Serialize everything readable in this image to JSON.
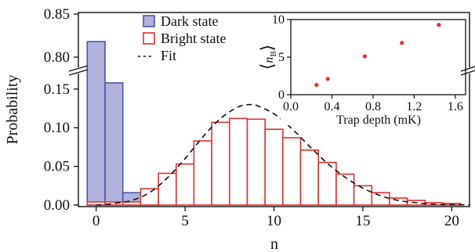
{
  "chart_data": [
    {
      "type": "bar",
      "xlabel": "n",
      "ylabel": "Probability",
      "x_ticks": [
        0,
        5,
        10,
        15,
        20
      ],
      "x_tick_labels": [
        "0",
        "5",
        "10",
        "15",
        "20"
      ],
      "xlim": [
        -1,
        21
      ],
      "y_lower_ticks": [
        0.0,
        0.05,
        0.1,
        0.15
      ],
      "y_lower_tick_labels": [
        "0.00",
        "0.05",
        "0.10",
        "0.15"
      ],
      "y_lower_range": [
        0.0,
        0.17
      ],
      "y_upper_ticks": [
        0.8,
        0.85
      ],
      "y_upper_tick_labels": [
        "0.80",
        "0.85"
      ],
      "y_upper_range": [
        0.79,
        0.85
      ],
      "broken_y_axis": true,
      "legend_position": "top-center",
      "categories": [
        0,
        1,
        2,
        3,
        4,
        5,
        6,
        7,
        8,
        9,
        10,
        11,
        12,
        13,
        14,
        15,
        16,
        17,
        18,
        19,
        20
      ],
      "series": [
        {
          "name": "Dark state",
          "kind": "bar",
          "color": "#4a55a8",
          "fill": "#b1b3dc",
          "values": [
            0.818,
            0.158,
            0.016,
            0.003,
            0,
            0,
            0,
            0,
            0,
            0,
            0,
            0,
            0,
            0,
            0,
            0,
            0,
            0,
            0,
            0,
            0
          ]
        },
        {
          "name": "Bright state",
          "kind": "bar",
          "color": "#e03030",
          "fill": "#ffffff",
          "values": [
            0.004,
            0.004,
            0.004,
            0.021,
            0.041,
            0.053,
            0.083,
            0.107,
            0.112,
            0.111,
            0.098,
            0.087,
            0.071,
            0.055,
            0.04,
            0.025,
            0.016,
            0.009,
            0.006,
            0.003,
            0.002
          ]
        },
        {
          "name": "Fit",
          "kind": "line",
          "style": "dashed",
          "color": "#111111",
          "x": [
            0,
            1,
            2,
            3,
            4,
            5,
            6,
            7,
            8,
            8.7,
            9,
            10,
            11,
            12,
            13,
            14,
            15,
            16,
            17,
            18,
            19,
            20,
            21
          ],
          "values": [
            0.0,
            0.002,
            0.006,
            0.016,
            0.035,
            0.06,
            0.088,
            0.112,
            0.127,
            0.13,
            0.129,
            0.118,
            0.099,
            0.076,
            0.054,
            0.036,
            0.022,
            0.012,
            0.006,
            0.003,
            0.001,
            0.0005,
            0.0002
          ]
        }
      ]
    },
    {
      "type": "scatter",
      "position": "inset-top-right",
      "xlabel": "Trap depth (mK)",
      "ylabel_main": "n",
      "ylabel_sub": "B",
      "xlim": [
        0.0,
        1.7
      ],
      "ylim": [
        0,
        10
      ],
      "x_ticks": [
        0.0,
        0.4,
        0.8,
        1.2,
        1.6
      ],
      "x_tick_labels": [
        "0.0",
        "0.4",
        "0.8",
        "1.2",
        "1.6"
      ],
      "y_ticks": [
        0,
        5,
        10
      ],
      "y_tick_labels": [
        "0",
        "5",
        "10"
      ],
      "color": "#e03030",
      "x": [
        0.25,
        0.36,
        0.72,
        1.08,
        1.44
      ],
      "y": [
        1.3,
        2.1,
        5.1,
        6.9,
        9.3
      ]
    }
  ]
}
